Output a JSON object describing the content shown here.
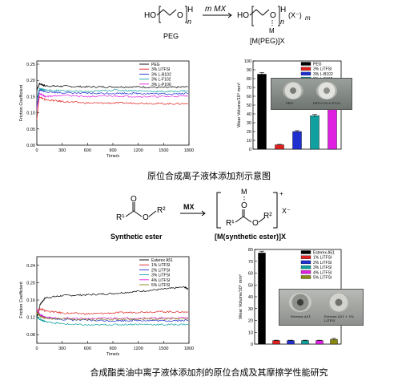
{
  "scheme1": {
    "reactant_ho": "HO",
    "reactant_o": "O",
    "reactant_h": "H",
    "reactant_n": "n",
    "reagent": "m MX",
    "product_ho": "HO",
    "product_o": "O",
    "product_h": "H",
    "product_m": "M",
    "product_n": "n",
    "product_anion": "(X⁻)",
    "product_m_sub": "m",
    "label_left": "PEG",
    "label_right": "[M(PEG)]X"
  },
  "scheme2": {
    "reagent": "MX",
    "r1": "R¹",
    "o_ester": "O",
    "o_carbonyl": "O",
    "r2": "R²",
    "m_top": "M",
    "plus": "+",
    "x_minus": "X⁻",
    "label_left": "Synthetic ester",
    "label_right": "[M(synthetic ester)]X"
  },
  "captions": {
    "top": "原位合成离子液体添加剂示意图",
    "bottom": "合成酯类油中离子液体添加剂的原位合成及其摩擦学性能研究"
  },
  "inset1": {
    "disc1": "PEG",
    "disc2": "PEG+3% L-F102"
  },
  "inset2": {
    "disc1": "Esterex A51",
    "disc2": "Esterex A51 + 5% LiTFSI"
  },
  "chart_data": [
    {
      "type": "line",
      "ylabel": "Friction Coefficient",
      "xlabel": "Time/s",
      "xlim": [
        0,
        1800
      ],
      "ylim": [
        0.0,
        0.26
      ],
      "xticks": [
        0,
        300,
        600,
        900,
        1200,
        1500,
        1800
      ],
      "yticks": [
        0.0,
        0.05,
        0.1,
        0.15,
        0.2,
        0.25
      ],
      "legend_position": "top-right",
      "series": [
        {
          "name": "PEG",
          "color": "#000000",
          "x": [
            0,
            30,
            100,
            300,
            600,
            900,
            1200,
            1500,
            1790
          ],
          "y": [
            0.17,
            0.19,
            0.183,
            0.182,
            0.18,
            0.18,
            0.18,
            0.178,
            0.18
          ]
        },
        {
          "name": "3% LiTFSI",
          "color": "#e02020",
          "x": [
            0,
            30,
            100,
            300,
            600,
            900,
            1200,
            1500,
            1790
          ],
          "y": [
            0.08,
            0.15,
            0.14,
            0.135,
            0.13,
            0.13,
            0.13,
            0.128,
            0.128
          ]
        },
        {
          "name": "3% L-B102",
          "color": "#2030d0",
          "x": [
            0,
            30,
            100,
            300,
            600,
            900,
            1200,
            1500,
            1790
          ],
          "y": [
            0.12,
            0.17,
            0.165,
            0.162,
            0.16,
            0.16,
            0.16,
            0.158,
            0.16
          ]
        },
        {
          "name": "3% L-F102",
          "color": "#10a0a0",
          "x": [
            0,
            30,
            100,
            300,
            600,
            900,
            1200,
            1500,
            1790
          ],
          "y": [
            0.14,
            0.175,
            0.17,
            0.168,
            0.165,
            0.17,
            0.168,
            0.165,
            0.168
          ]
        },
        {
          "name": "3% L-P106",
          "color": "#e020e0",
          "x": [
            0,
            30,
            100,
            300,
            600,
            900,
            1200,
            1500,
            1790
          ],
          "y": [
            0.11,
            0.16,
            0.15,
            0.155,
            0.15,
            0.152,
            0.15,
            0.15,
            0.152
          ]
        }
      ]
    },
    {
      "type": "bar",
      "ylabel": "Wear Volume/10⁴ mm³",
      "categories": [
        "PEG",
        "3% LiTFSI",
        "3% L-B102",
        "3% L-F102",
        "3% L-P106"
      ],
      "values": [
        85,
        5,
        20,
        38,
        57
      ],
      "errors": [
        2,
        0.5,
        1,
        1.5,
        2
      ],
      "colors": [
        "#000000",
        "#e02020",
        "#2030d0",
        "#10a0a0",
        "#e020e0"
      ],
      "ylim": [
        0,
        100
      ],
      "legend_position": "top-right"
    },
    {
      "type": "line",
      "ylabel": "Friction Coefficient",
      "xlabel": "Time/s",
      "xlim": [
        0,
        1800
      ],
      "ylim": [
        0.06,
        0.26
      ],
      "xticks": [
        0,
        300,
        600,
        900,
        1200,
        1500,
        1800
      ],
      "yticks": [
        0.08,
        0.12,
        0.16,
        0.2,
        0.24
      ],
      "legend_position": "top-right",
      "series": [
        {
          "name": "Esterex A51",
          "color": "#000000",
          "x": [
            0,
            40,
            100,
            300,
            600,
            900,
            1200,
            1500,
            1750,
            1790
          ],
          "y": [
            0.12,
            0.15,
            0.165,
            0.17,
            0.172,
            0.175,
            0.18,
            0.185,
            0.19,
            0.185
          ]
        },
        {
          "name": "1% LiTFSI",
          "color": "#e02020",
          "x": [
            0,
            40,
            100,
            300,
            600,
            900,
            1200,
            1500,
            1790
          ],
          "y": [
            0.13,
            0.14,
            0.135,
            0.13,
            0.128,
            0.13,
            0.132,
            0.133,
            0.132
          ]
        },
        {
          "name": "2% LiTFSI",
          "color": "#2030d0",
          "x": [
            0,
            40,
            100,
            300,
            600,
            900,
            1200,
            1500,
            1790
          ],
          "y": [
            0.13,
            0.125,
            0.12,
            0.115,
            0.113,
            0.112,
            0.113,
            0.112,
            0.113
          ]
        },
        {
          "name": "3% LiTFSI",
          "color": "#10a0a0",
          "x": [
            0,
            40,
            100,
            300,
            600,
            900,
            1200,
            1500,
            1790
          ],
          "y": [
            0.12,
            0.115,
            0.11,
            0.105,
            0.102,
            0.103,
            0.104,
            0.103,
            0.104
          ]
        },
        {
          "name": "4% LiTFSI",
          "color": "#e020e0",
          "x": [
            0,
            40,
            100,
            300,
            600,
            900,
            1200,
            1500,
            1790
          ],
          "y": [
            0.14,
            0.125,
            0.12,
            0.118,
            0.117,
            0.118,
            0.118,
            0.118,
            0.119
          ]
        },
        {
          "name": "5% LiTFSI",
          "color": "#8a8a10",
          "x": [
            0,
            40,
            100,
            300,
            600,
            900,
            1200,
            1500,
            1790
          ],
          "y": [
            0.13,
            0.122,
            0.118,
            0.116,
            0.115,
            0.115,
            0.116,
            0.116,
            0.117
          ]
        }
      ]
    },
    {
      "type": "bar",
      "ylabel": "Wear Volume/10⁴ mm³",
      "categories": [
        "Esterex A51",
        "1% LiTFSI",
        "2% LiTFSI",
        "3% LiTFSI",
        "4% LiTFSI",
        "5% LiTFSI"
      ],
      "values": [
        77,
        3,
        3,
        3,
        3,
        4
      ],
      "errors": [
        1.5,
        0.3,
        0.3,
        0.3,
        0.3,
        0.8
      ],
      "colors": [
        "#000000",
        "#e02020",
        "#2030d0",
        "#10a0a0",
        "#e020e0",
        "#8a8a10"
      ],
      "ylim": [
        0,
        80
      ],
      "yticks": [
        0,
        10,
        20,
        30,
        40,
        50,
        60,
        70,
        80
      ],
      "legend_position": "top-right"
    }
  ]
}
